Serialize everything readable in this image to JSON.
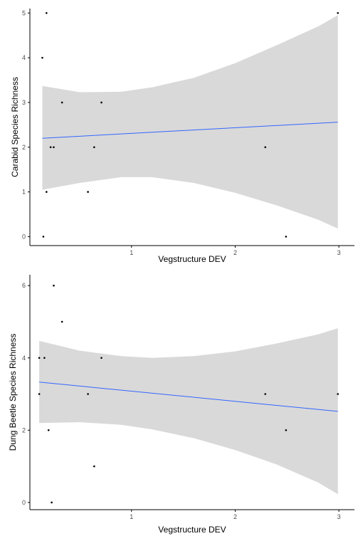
{
  "chart_data": [
    {
      "type": "scatter",
      "title": "",
      "xlabel": "Vegstructure DEV",
      "ylabel": "Carabid Species Richness",
      "xlim": [
        0.02,
        3.15
      ],
      "ylim": [
        -0.2,
        5.1
      ],
      "x_ticks": [
        1,
        2,
        3
      ],
      "y_ticks": [
        0,
        1,
        2,
        3,
        4,
        5
      ],
      "x_tick_labels": [
        "1",
        "2",
        "3"
      ],
      "y_tick_labels": [
        "0",
        "1",
        "2",
        "3",
        "4",
        "5"
      ],
      "grid": false,
      "points": [
        {
          "x": 0.14,
          "y": 4
        },
        {
          "x": 0.18,
          "y": 5
        },
        {
          "x": 0.18,
          "y": 1
        },
        {
          "x": 0.15,
          "y": 0
        },
        {
          "x": 0.22,
          "y": 2
        },
        {
          "x": 0.25,
          "y": 2
        },
        {
          "x": 0.33,
          "y": 3
        },
        {
          "x": 0.58,
          "y": 1
        },
        {
          "x": 0.64,
          "y": 2
        },
        {
          "x": 0.71,
          "y": 3
        },
        {
          "x": 2.29,
          "y": 2
        },
        {
          "x": 2.49,
          "y": 0
        },
        {
          "x": 2.99,
          "y": 5
        }
      ],
      "fit_line": {
        "x": [
          0.14,
          2.99
        ],
        "y": [
          2.2,
          2.56
        ],
        "color": "#3366FF"
      },
      "confidence_band": {
        "x": [
          0.14,
          0.5,
          0.9,
          1.2,
          1.6,
          2.0,
          2.4,
          2.8,
          2.99
        ],
        "lower": [
          1.05,
          1.2,
          1.33,
          1.33,
          1.2,
          0.98,
          0.7,
          0.38,
          0.18
        ],
        "upper": [
          3.37,
          3.23,
          3.24,
          3.34,
          3.55,
          3.88,
          4.28,
          4.7,
          4.95
        ],
        "color": "#D9D9D9"
      }
    },
    {
      "type": "scatter",
      "title": "",
      "xlabel": "Vegstructure DEV",
      "ylabel": "Dung Beetle Species Richness",
      "xlim": [
        0.02,
        3.15
      ],
      "ylim": [
        -0.2,
        6.3
      ],
      "x_ticks": [
        1,
        2,
        3
      ],
      "y_ticks": [
        0,
        2,
        4,
        6
      ],
      "x_tick_labels": [
        "1",
        "2",
        "3"
      ],
      "y_tick_labels": [
        "0",
        "2",
        "4",
        "6"
      ],
      "grid": false,
      "points": [
        {
          "x": 0.11,
          "y": 4
        },
        {
          "x": 0.16,
          "y": 4
        },
        {
          "x": 0.11,
          "y": 3
        },
        {
          "x": 0.2,
          "y": 2
        },
        {
          "x": 0.23,
          "y": 0
        },
        {
          "x": 0.25,
          "y": 6
        },
        {
          "x": 0.33,
          "y": 5
        },
        {
          "x": 0.58,
          "y": 3
        },
        {
          "x": 0.64,
          "y": 1
        },
        {
          "x": 0.71,
          "y": 4
        },
        {
          "x": 2.29,
          "y": 3
        },
        {
          "x": 2.49,
          "y": 2
        },
        {
          "x": 2.99,
          "y": 3
        }
      ],
      "fit_line": {
        "x": [
          0.11,
          2.99
        ],
        "y": [
          3.33,
          2.52
        ],
        "color": "#3366FF"
      },
      "confidence_band": {
        "x": [
          0.11,
          0.5,
          0.9,
          1.2,
          1.6,
          2.0,
          2.4,
          2.8,
          2.99
        ],
        "lower": [
          2.2,
          2.22,
          2.15,
          2.02,
          1.78,
          1.45,
          1.05,
          0.55,
          0.23
        ],
        "upper": [
          4.47,
          4.2,
          4.05,
          4.0,
          4.05,
          4.18,
          4.4,
          4.65,
          4.82
        ],
        "color": "#D9D9D9"
      }
    }
  ]
}
